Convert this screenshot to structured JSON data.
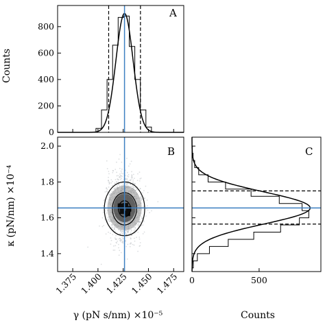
{
  "chart_data": [
    {
      "panel": "A",
      "type": "histogram",
      "letter": "A",
      "ylabel": "Counts",
      "xlim": [
        1.36,
        1.485
      ],
      "ylim": [
        0,
        960
      ],
      "yticks": [
        0,
        200,
        400,
        600,
        800
      ],
      "bin_edges": [
        1.398,
        1.4035,
        1.409,
        1.4145,
        1.42,
        1.4255,
        1.431,
        1.4365,
        1.442,
        1.4475,
        1.453
      ],
      "counts": [
        30,
        170,
        400,
        660,
        870,
        880,
        650,
        400,
        170,
        40
      ],
      "mean": 1.4263,
      "bounds": [
        1.4106,
        1.4421
      ],
      "fit_peak": 900,
      "fit_sigma": 0.0085
    },
    {
      "panel": "B",
      "type": "density",
      "letter": "B",
      "xlabel": "γ (pN s/nm) ×10⁻⁵",
      "ylabel": "κ (pN/nm) ×10⁻⁴",
      "xlim": [
        1.36,
        1.485
      ],
      "ylim": [
        1.3,
        2.05
      ],
      "xticks": [
        "1.375",
        "1.400",
        "1.425",
        "1.450",
        "1.475"
      ],
      "xtick_values": [
        1.375,
        1.4,
        1.425,
        1.45,
        1.475
      ],
      "yticks": [
        "1.4",
        "1.6",
        "1.8",
        "2.0"
      ],
      "ytick_values": [
        1.4,
        1.6,
        1.8,
        2.0
      ],
      "center": [
        1.4263,
        1.655
      ],
      "contour_radii": [
        [
          0.006,
          0.045
        ],
        [
          0.012,
          0.09
        ],
        [
          0.02,
          0.15
        ]
      ]
    },
    {
      "panel": "C",
      "type": "histogram-horizontal",
      "letter": "C",
      "xlabel": "Counts",
      "xlim": [
        0,
        960
      ],
      "ylim": [
        1.3,
        2.05
      ],
      "xticks": [
        "0",
        "500"
      ],
      "xtick_values": [
        0,
        500
      ],
      "bin_edges": [
        1.32,
        1.36,
        1.4,
        1.44,
        1.48,
        1.52,
        1.56,
        1.6,
        1.64,
        1.68,
        1.72,
        1.76,
        1.8,
        1.84,
        1.88,
        1.92,
        1.96,
        2.0
      ],
      "counts": [
        10,
        40,
        130,
        270,
        460,
        660,
        800,
        870,
        820,
        650,
        440,
        250,
        120,
        50,
        20,
        8,
        3
      ],
      "mean": 1.655,
      "bounds": [
        1.565,
        1.75
      ],
      "fit_peak": 880,
      "fit_sigma": 0.09
    }
  ]
}
